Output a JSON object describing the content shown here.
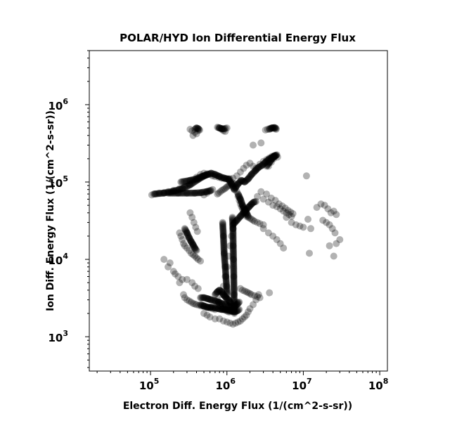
{
  "chart_data": {
    "type": "scatter",
    "title": "POLAR/HYD  Ion Differential Energy Flux",
    "xlabel": "Electron Diff. Energy Flux (1/(cm^2-s-sr))",
    "ylabel": "Ion Diff. Energy Flux (1/(cm^2-s-sr))",
    "xscale": "log",
    "yscale": "log",
    "xlim": [
      15800,
      126000000
    ],
    "ylim": [
      360,
      5000000
    ],
    "xticks": [
      {
        "base": "10",
        "exp": "5",
        "value": 100000
      },
      {
        "base": "10",
        "exp": "6",
        "value": 1000000
      },
      {
        "base": "10",
        "exp": "7",
        "value": 10000000
      },
      {
        "base": "10",
        "exp": "8",
        "value": 100000000
      }
    ],
    "yticks": [
      {
        "base": "10",
        "exp": "3",
        "value": 1000
      },
      {
        "base": "10",
        "exp": "4",
        "value": 10000
      },
      {
        "base": "10",
        "exp": "5",
        "value": 100000
      },
      {
        "base": "10",
        "exp": "6",
        "value": 1000000
      }
    ],
    "grid": false,
    "marker_color": "#000000",
    "marker_alpha": 0.3,
    "scatter_points": {
      "x": [
        104000,
        115000,
        130000,
        150000,
        170000,
        200000,
        240000,
        280000,
        320000,
        360000,
        400000,
        450000,
        500000,
        550000,
        600000,
        650000,
        700000,
        780000,
        850000,
        950000,
        1050000,
        1200000,
        1350000,
        1500000,
        1650000,
        1800000,
        2000000,
        2200000,
        2400000,
        2700000,
        3000000,
        3300000,
        3600000,
        3900000,
        4200000,
        1250000,
        1300000,
        1350000,
        1400000,
        1450000,
        1500000,
        1550000,
        1600000,
        1650000,
        1700000,
        1750000,
        1800000,
        1900000,
        2000000,
        2100000,
        2200000,
        2300000,
        2500000,
        2700000,
        3000000,
        1250000,
        1200000,
        1150000,
        1100000,
        1050000,
        1000000,
        950000,
        900000,
        850000,
        750000,
        780000,
        800000,
        820000,
        850000,
        880000,
        900000,
        950000,
        1000000,
        1050000,
        1100000,
        1150000,
        1200000,
        1250000,
        1300000,
        1350000,
        270000,
        280000,
        300000,
        320000,
        340000,
        360000,
        380000,
        400000,
        430000,
        460000,
        500000,
        550000,
        600000,
        650000,
        700000,
        240000,
        250000,
        260000,
        270000,
        280000,
        300000,
        320000,
        340000,
        360000,
        380000,
        400000,
        420000,
        450000,
        330000,
        350000,
        370000,
        390000,
        410000,
        750000,
        780000,
        820000,
        860000,
        900000,
        940000,
        980000,
        1020000,
        1060000,
        1100000,
        1140000,
        1180000,
        500000,
        550000,
        600000,
        650000,
        3200000,
        3400000,
        3600000,
        3800000,
        4000000,
        4200000,
        4400000,
        330000,
        350000,
        380000,
        400000,
        420000,
        360000,
        800000,
        850000,
        900000,
        950000,
        1000000,
        3500000,
        3800000,
        4100000,
        4400000,
        4600000,
        2500000,
        3000000,
        3500000,
        4000000,
        4500000,
        5000000,
        5500000,
        6000000,
        6500000,
        7000000,
        2800000,
        3300000,
        3800000,
        4300000,
        4800000,
        5300000,
        5800000,
        6300000,
        6800000,
        7300000,
        3000000,
        3500000,
        4000000,
        4500000,
        5000000,
        5500000,
        6000000,
        7000000,
        8000000,
        9000000,
        10000000,
        11500000,
        12500000,
        15000000,
        17000000,
        19000000,
        21000000,
        23000000,
        25000000,
        27000000,
        30000000,
        18000000,
        20000000,
        22000000,
        24000000,
        26000000,
        12000000,
        22000000,
        25000000,
        27000000,
        150000,
        170000,
        200000,
        230000,
        260000,
        180000,
        210000,
        240000,
        500000,
        550000,
        600000,
        700000,
        800000,
        900000,
        1000000,
        1100000,
        1200000,
        1300000,
        1400000,
        1500000,
        1600000,
        1700000,
        1800000,
        1900000,
        2000000,
        2200000,
        2400000,
        2600000,
        1600000,
        1800000,
        1900000,
        2000000,
        2100000,
        2300000,
        2500000,
        2700000,
        1500000,
        1700000,
        350000,
        380000,
        420000,
        300000,
        3600000,
        2800000,
        2200000,
        11000000
      ],
      "y": [
        68000,
        70000,
        72000,
        73000,
        75000,
        78000,
        82000,
        88000,
        95000,
        105000,
        115000,
        125000,
        130000,
        128000,
        125000,
        120000,
        118000,
        115000,
        112000,
        110000,
        108000,
        112000,
        120000,
        135000,
        150000,
        165000,
        175000,
        160000,
        150000,
        170000,
        185000,
        195000,
        205000,
        215000,
        220000,
        95000,
        85000,
        75000,
        65000,
        58000,
        52000,
        48000,
        45000,
        42000,
        40000,
        38000,
        36000,
        35000,
        34000,
        33000,
        32000,
        31000,
        30000,
        29000,
        28000,
        30000,
        25000,
        20000,
        15000,
        11000,
        8000,
        6000,
        4500,
        3500,
        3000,
        2800,
        2600,
        2500,
        2400,
        2300,
        2250,
        2200,
        2150,
        2100,
        2100,
        2150,
        2200,
        2300,
        2500,
        2800,
        3500,
        3200,
        3000,
        2900,
        2800,
        2700,
        2650,
        2600,
        2550,
        2500,
        2450,
        2400,
        2350,
        2300,
        2250,
        22000,
        20000,
        18000,
        16000,
        15000,
        14000,
        13000,
        12000,
        11500,
        11000,
        10500,
        10000,
        9500,
        40000,
        35000,
        30000,
        26000,
        23000,
        70000,
        72000,
        75000,
        78000,
        80000,
        82000,
        85000,
        88000,
        90000,
        92000,
        95000,
        98000,
        68000,
        72000,
        76000,
        80000,
        470000,
        480000,
        490000,
        500000,
        500000,
        490000,
        480000,
        480000,
        460000,
        440000,
        420000,
        460000,
        400000,
        500000,
        480000,
        460000,
        450000,
        500000,
        160000,
        180000,
        200000,
        220000,
        210000,
        65000,
        60000,
        55000,
        50000,
        48000,
        45000,
        42000,
        40000,
        38000,
        36000,
        75000,
        70000,
        62000,
        58000,
        52000,
        49000,
        46000,
        43000,
        41000,
        39000,
        25000,
        22000,
        20000,
        18000,
        16000,
        14000,
        35000,
        30000,
        28000,
        27000,
        26000,
        33000,
        25000,
        47000,
        52000,
        50000,
        45000,
        40000,
        42000,
        38000,
        18000,
        32000,
        30000,
        28000,
        25000,
        22000,
        12000,
        15000,
        11000,
        16000,
        10000,
        8000,
        7000,
        6000,
        5500,
        9000,
        6500,
        5000,
        2000,
        1900,
        1800,
        1700,
        1700,
        1600,
        1550,
        1500,
        1450,
        1500,
        1550,
        1600,
        1700,
        1800,
        1900,
        2100,
        2300,
        2600,
        3000,
        3500,
        4000,
        3800,
        3700,
        3600,
        3500,
        3400,
        3300,
        3200,
        4200,
        3900,
        5000,
        4500,
        4200,
        5500,
        3700,
        320000,
        300000,
        120000
      ]
    },
    "dense_segments": [
      {
        "x": [
          110000,
          150000,
          200000,
          260000,
          330000,
          420000,
          520000,
          620000,
          700000,
          800000,
          900000,
          1000000,
          1100000
        ],
        "y": [
          70000,
          72000,
          76000,
          82000,
          92000,
          108000,
          122000,
          130000,
          125000,
          118000,
          113000,
          110000,
          110000
        ]
      },
      {
        "x": [
          170000,
          230000,
          300000,
          380000,
          460000,
          540000,
          620000
        ],
        "y": [
          72000,
          72000,
          72000,
          72000,
          73000,
          75000,
          78000
        ]
      },
      {
        "x": [
          250000,
          330000,
          400000,
          470000,
          560000
        ],
        "y": [
          100000,
          105000,
          110000,
          118000,
          125000
        ]
      },
      {
        "x": [
          1050000,
          1150000,
          1250000,
          1400000,
          1550000,
          1700000,
          1900000,
          2100000,
          2350000,
          2600000,
          2900000,
          3200000,
          3500000,
          3800000,
          4100000,
          4300000
        ],
        "y": [
          108000,
          95000,
          80000,
          95000,
          105000,
          100000,
          110000,
          125000,
          140000,
          155000,
          165000,
          180000,
          195000,
          205000,
          215000,
          220000
        ]
      },
      {
        "x": [
          1200000,
          1350000,
          1500000,
          1650000,
          1800000,
          1950000,
          2100000,
          2250000,
          2400000
        ],
        "y": [
          28000,
          32000,
          36000,
          40000,
          44000,
          48000,
          52000,
          55000,
          56000
        ]
      },
      {
        "x": [
          1400000,
          1500000,
          1600000,
          1700000,
          1800000,
          1900000
        ],
        "y": [
          70000,
          60000,
          50000,
          44000,
          40000,
          36000
        ]
      },
      {
        "x": [
          1180000,
          1200000,
          1210000,
          1220000,
          1230000,
          1240000,
          1250000
        ],
        "y": [
          35000,
          25000,
          15000,
          10000,
          6000,
          3500,
          2000
        ]
      },
      {
        "x": [
          880000,
          900000,
          920000,
          950000,
          970000,
          990000,
          1010000
        ],
        "y": [
          30000,
          20000,
          12000,
          8000,
          6000,
          4500,
          3500
        ]
      },
      {
        "x": [
          450000,
          500000,
          560000,
          620000,
          700000,
          780000,
          850000,
          950000,
          1050000,
          1150000,
          1250000,
          1350000,
          1450000
        ],
        "y": [
          3200,
          3200,
          3100,
          3000,
          2900,
          2800,
          2700,
          2600,
          2500,
          2450,
          2500,
          2600,
          2800
        ]
      },
      {
        "x": [
          450000,
          500000,
          560000,
          620000,
          700000,
          780000,
          850000,
          950000,
          1050000,
          1150000,
          1250000,
          1350000,
          1450000
        ],
        "y": [
          2600,
          2500,
          2400,
          2400,
          2350,
          2300,
          2250,
          2250,
          2200,
          2150,
          2100,
          2150,
          2250
        ]
      },
      {
        "x": [
          700000,
          750000,
          800000,
          850000,
          900000,
          950000,
          1000000,
          1050000,
          1100000,
          1150000
        ],
        "y": [
          3500,
          3800,
          4000,
          3800,
          3500,
          3300,
          3100,
          3000,
          2800,
          2600
        ]
      },
      {
        "x": [
          280000,
          300000,
          320000,
          340000,
          360000,
          380000,
          400000
        ],
        "y": [
          25000,
          22000,
          19000,
          17000,
          15500,
          14000,
          13000
        ]
      },
      {
        "x": [
          380000,
          400000,
          420000,
          440000
        ],
        "y": [
          480000,
          500000,
          490000,
          470000
        ]
      },
      {
        "x": [
          750000,
          800000,
          850000,
          900000,
          960000
        ],
        "y": [
          510000,
          500000,
          490000,
          485000,
          495000
        ]
      },
      {
        "x": [
          3600000,
          3900000,
          4200000,
          4400000
        ],
        "y": [
          480000,
          500000,
          505000,
          495000
        ]
      },
      {
        "x": [
          3300000,
          3600000,
          3900000,
          4200000,
          4500000
        ],
        "y": [
          160000,
          180000,
          200000,
          215000,
          225000
        ]
      }
    ]
  }
}
